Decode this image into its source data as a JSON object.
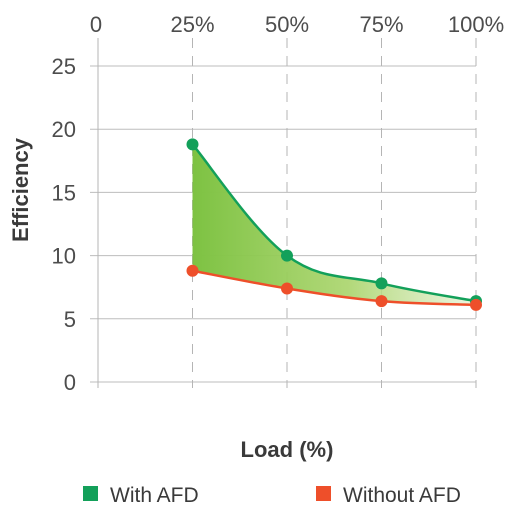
{
  "chart_data": {
    "type": "line",
    "title": "",
    "xlabel": "Load (%)",
    "ylabel": "Efficiency",
    "x_ticks": [
      "0",
      "25%",
      "50%",
      "75%",
      "100%"
    ],
    "y_ticks": [
      "0",
      "5",
      "10",
      "15",
      "20",
      "25"
    ],
    "xlim": [
      0,
      100
    ],
    "ylim": [
      0,
      25
    ],
    "grid": "horizontal solid, vertical dashed",
    "x": [
      25,
      50,
      75,
      100
    ],
    "series": [
      {
        "name": "With AFD",
        "color": "#13a05a",
        "values": [
          18.8,
          10.0,
          7.8,
          6.4
        ]
      },
      {
        "name": "Without AFD",
        "color": "#ee4f2a",
        "values": [
          8.8,
          7.4,
          6.4,
          6.1
        ]
      }
    ],
    "fill_between": {
      "upper": "With AFD",
      "lower": "Without AFD",
      "color": "#7dc242"
    },
    "legend": {
      "position": "bottom",
      "items": [
        "With AFD",
        "Without AFD"
      ]
    }
  }
}
